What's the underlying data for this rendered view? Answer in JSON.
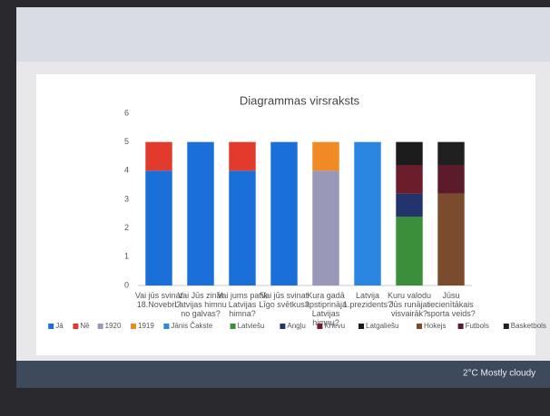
{
  "chart_data": {
    "type": "bar",
    "stacked": true,
    "title": "Diagrammas virsraksts",
    "categories": [
      "Vai jūs svinat 18.Novebri?",
      "Vai Jūs zināt Latvijas himnu no galvas?",
      "Vai jums patīk Latvijas himna?",
      "Vai jūs svinat Līgo svētkus?",
      "Kura gadā apstiprināja Latvijas himnu?",
      "Latvija 1.prezidents?",
      "Kuru valodu Jūs runājat visvairāk?",
      "Jūsu iecienītākais sporta veids?"
    ],
    "series": [
      {
        "name": "Jā",
        "color": "#1a6fd8",
        "values": [
          4,
          5,
          4,
          5,
          null,
          null,
          null,
          null
        ]
      },
      {
        "name": "Nē",
        "color": "#e23b2e",
        "values": [
          1,
          null,
          1,
          null,
          null,
          null,
          null,
          null
        ]
      },
      {
        "name": "1920",
        "color": "#9a98b8",
        "values": [
          null,
          null,
          null,
          null,
          4,
          null,
          null,
          null
        ]
      },
      {
        "name": "1919",
        "color": "#f08a24",
        "values": [
          null,
          null,
          null,
          null,
          1,
          null,
          null,
          null
        ]
      },
      {
        "name": "Jānis Čakste",
        "color": "#2a86e0",
        "values": [
          null,
          null,
          null,
          null,
          null,
          5,
          null,
          null
        ]
      },
      {
        "name": "Latviešu",
        "color": "#3c8f3a",
        "values": [
          null,
          null,
          null,
          null,
          null,
          null,
          2.4,
          null
        ]
      },
      {
        "name": "Angļu",
        "color": "#22336e",
        "values": [
          null,
          null,
          null,
          null,
          null,
          null,
          0.8,
          null
        ]
      },
      {
        "name": "Krievu",
        "color": "#6b1d2c",
        "values": [
          null,
          null,
          null,
          null,
          null,
          null,
          1,
          null
        ]
      },
      {
        "name": "Latgaliešu",
        "color": "#1c1c1c",
        "values": [
          null,
          null,
          null,
          null,
          null,
          null,
          0.8,
          null
        ]
      },
      {
        "name": "Hokejs",
        "color": "#7a4b2c",
        "values": [
          null,
          null,
          null,
          null,
          null,
          null,
          null,
          3.2
        ]
      },
      {
        "name": "Futbols",
        "color": "#5c1b2a",
        "values": [
          null,
          null,
          null,
          null,
          null,
          null,
          null,
          1
        ]
      },
      {
        "name": "Basketbols",
        "color": "#202020",
        "values": [
          null,
          null,
          null,
          null,
          null,
          null,
          null,
          0.8
        ]
      }
    ],
    "ylim": [
      0,
      6
    ],
    "yticks": [
      0,
      1,
      2,
      3,
      4,
      5,
      6
    ],
    "grid": false,
    "legend": "bottom"
  },
  "taskbar": {
    "weather": "2°C Mostly cloudy"
  }
}
